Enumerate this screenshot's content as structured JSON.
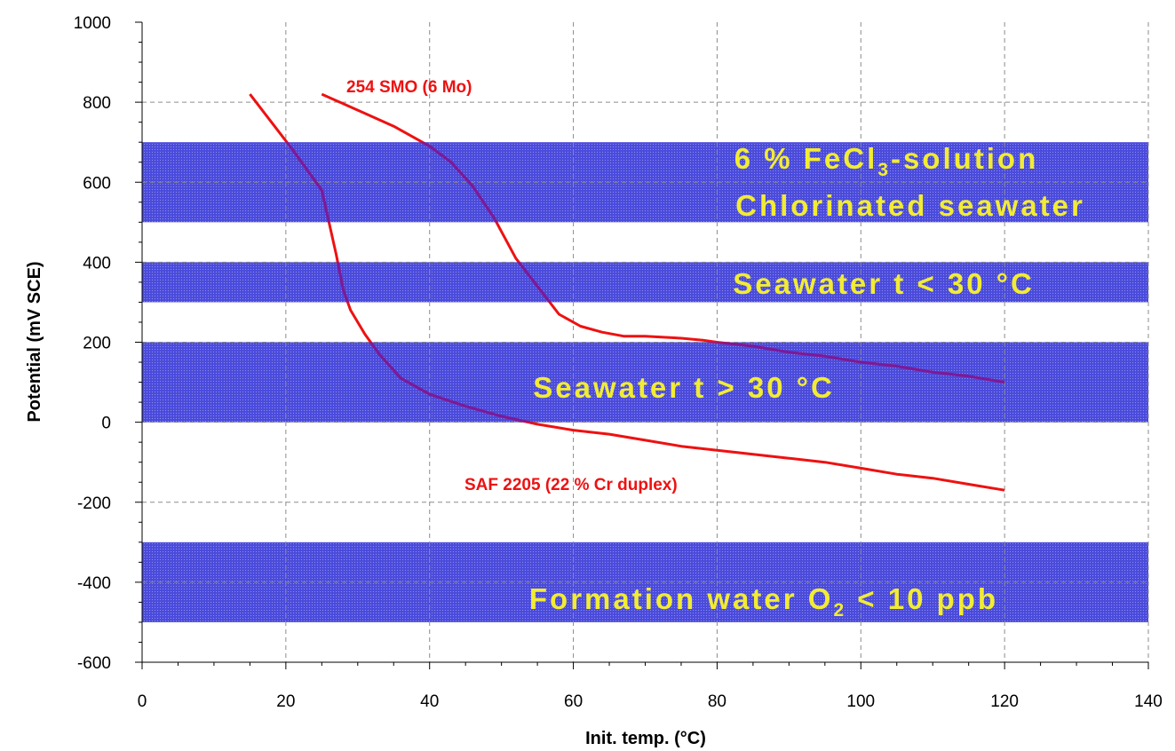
{
  "chart_data": {
    "type": "line",
    "title": "",
    "xlabel": "Init. temp. (°C)",
    "ylabel": "Potential (mV SCE)",
    "xlim": [
      0,
      140
    ],
    "ylim": [
      -600,
      1000
    ],
    "x_ticks": [
      0,
      20,
      40,
      60,
      80,
      100,
      120,
      140
    ],
    "y_ticks": [
      -600,
      -400,
      -200,
      0,
      200,
      400,
      600,
      800,
      1000
    ],
    "x_tick_labels": [
      "0",
      "20",
      "40",
      "60",
      "80",
      "100",
      "120",
      "140"
    ],
    "y_tick_labels": [
      "-600",
      "-400",
      "-200",
      "0",
      "200",
      "400",
      "600",
      "800",
      "1000"
    ],
    "grid": true,
    "bands": [
      {
        "y_from": 500,
        "y_to": 700,
        "labels": [
          "6 % FeCl",
          "Chlorinated seawater"
        ],
        "label_subscript": "3",
        "label_suffix": "-solution"
      },
      {
        "y_from": 300,
        "y_to": 400,
        "labels": [
          "Seawater t < 30 °C"
        ]
      },
      {
        "y_from": 0,
        "y_to": 200,
        "labels": [
          "Seawater t > 30 °C"
        ]
      },
      {
        "y_from": -500,
        "y_to": -300,
        "labels": [
          "Formation water O"
        ],
        "label_subscript": "2",
        "label_suffix": " < 10 ppb"
      }
    ],
    "series": [
      {
        "name": "254 SMO (6 Mo)",
        "x": [
          25,
          30,
          35,
          40,
          43,
          46,
          49,
          52,
          55,
          58,
          61,
          64,
          67,
          70,
          75,
          78,
          80,
          85,
          90,
          95,
          100,
          105,
          110,
          115,
          120
        ],
        "y": [
          820,
          780,
          740,
          690,
          650,
          590,
          510,
          410,
          340,
          270,
          240,
          225,
          215,
          215,
          210,
          205,
          200,
          190,
          175,
          165,
          150,
          140,
          125,
          115,
          100
        ]
      },
      {
        "name": "SAF 2205 (22 % Cr duplex)",
        "x": [
          15,
          18,
          21,
          25,
          26,
          27,
          28,
          29,
          31,
          33,
          36,
          40,
          45,
          50,
          55,
          60,
          65,
          70,
          75,
          80,
          85,
          90,
          95,
          100,
          105,
          110,
          115,
          120
        ],
        "y": [
          820,
          750,
          680,
          580,
          500,
          420,
          330,
          280,
          220,
          170,
          110,
          70,
          40,
          15,
          -5,
          -20,
          -30,
          -45,
          -60,
          -70,
          -80,
          -90,
          -100,
          -115,
          -130,
          -140,
          -155,
          -170
        ]
      }
    ]
  },
  "colors": {
    "band": "#4c4cdc",
    "band_label": "#f2ec33",
    "curve": "#ee1111",
    "curve_in_band": "#7a1a9a",
    "grid": "#8c8c8c",
    "axis": "#000000"
  }
}
